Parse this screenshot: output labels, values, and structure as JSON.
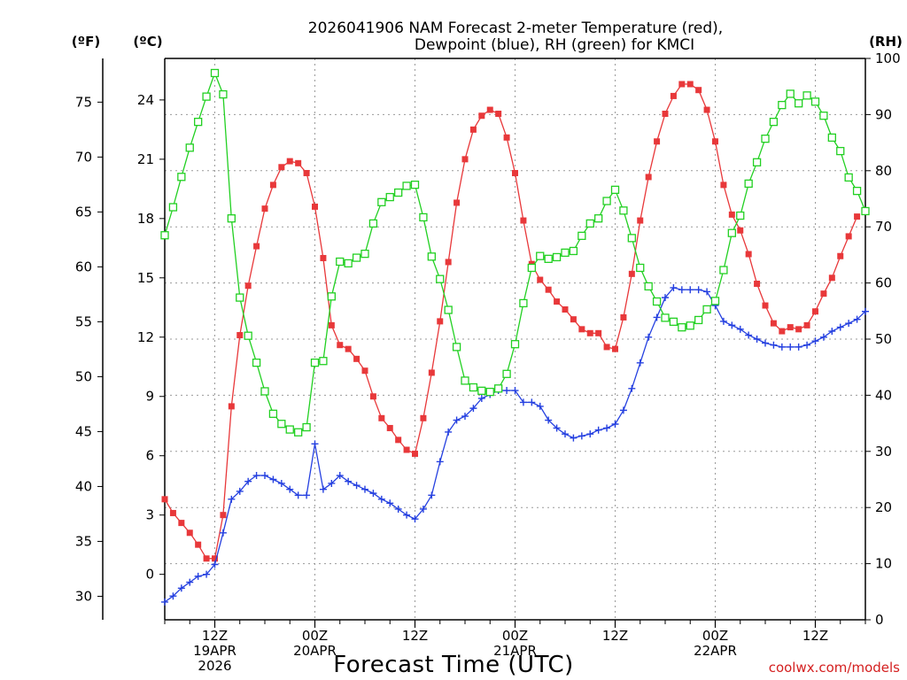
{
  "title": [
    "2026041906 NAM Forecast 2-meter Temperature (red),",
    "Dewpoint (blue), RH (green) for KMCI"
  ],
  "credit": "coolwx.com/models",
  "chart_data": {
    "type": "line",
    "xlabel": "Forecast Time (UTC)",
    "x_unit": "hours from 2026-04-19 06Z",
    "xlim": [
      0,
      84
    ],
    "x_ticks": [
      {
        "x": 6,
        "lines": [
          "12Z",
          "19APR",
          "2026"
        ]
      },
      {
        "x": 18,
        "lines": [
          "00Z",
          "20APR"
        ]
      },
      {
        "x": 30,
        "lines": [
          "12Z"
        ]
      },
      {
        "x": 42,
        "lines": [
          "00Z",
          "21APR"
        ]
      },
      {
        "x": 54,
        "lines": [
          "12Z"
        ]
      },
      {
        "x": 66,
        "lines": [
          "00Z",
          "22APR"
        ]
      },
      {
        "x": 78,
        "lines": [
          "12Z"
        ]
      }
    ],
    "axes": {
      "fahrenheit": {
        "label": "(ºF)",
        "ticks": [
          30,
          35,
          40,
          45,
          50,
          55,
          60,
          65,
          70,
          75
        ]
      },
      "celsius": {
        "label": "(ºC)",
        "ylim": [
          -2.3,
          26.1
        ],
        "ticks": [
          0,
          3,
          6,
          9,
          12,
          15,
          18,
          21,
          24
        ]
      },
      "rh": {
        "label": "(RH)",
        "ylim": [
          0,
          100
        ],
        "ticks": [
          0,
          10,
          20,
          30,
          40,
          50,
          60,
          70,
          80,
          90,
          100
        ]
      }
    },
    "grid": true,
    "series": [
      {
        "name": "Temperature",
        "axis": "celsius",
        "color": "#e8383a",
        "marker": "filled-square",
        "points": [
          [
            0,
            3.8
          ],
          [
            1,
            3.1
          ],
          [
            2,
            2.6
          ],
          [
            3,
            2.1
          ],
          [
            4,
            1.5
          ],
          [
            5,
            0.8
          ],
          [
            6,
            0.8
          ],
          [
            7,
            3.0
          ],
          [
            8,
            8.5
          ],
          [
            9,
            12.1
          ],
          [
            10,
            14.6
          ],
          [
            11,
            16.6
          ],
          [
            12,
            18.5
          ],
          [
            13,
            19.7
          ],
          [
            14,
            20.6
          ],
          [
            15,
            20.9
          ],
          [
            16,
            20.8
          ],
          [
            17,
            20.3
          ],
          [
            18,
            18.6
          ],
          [
            19,
            16.0
          ],
          [
            20,
            12.6
          ],
          [
            21,
            11.6
          ],
          [
            22,
            11.4
          ],
          [
            23,
            10.9
          ],
          [
            24,
            10.3
          ],
          [
            25,
            9.0
          ],
          [
            26,
            7.9
          ],
          [
            27,
            7.4
          ],
          [
            28,
            6.8
          ],
          [
            29,
            6.3
          ],
          [
            30,
            6.1
          ],
          [
            31,
            7.9
          ],
          [
            32,
            10.2
          ],
          [
            33,
            12.8
          ],
          [
            34,
            15.8
          ],
          [
            35,
            18.8
          ],
          [
            36,
            21.0
          ],
          [
            37,
            22.5
          ],
          [
            38,
            23.2
          ],
          [
            39,
            23.5
          ],
          [
            40,
            23.3
          ],
          [
            41,
            22.1
          ],
          [
            42,
            20.3
          ],
          [
            43,
            17.9
          ],
          [
            44,
            15.7
          ],
          [
            45,
            14.9
          ],
          [
            46,
            14.4
          ],
          [
            47,
            13.8
          ],
          [
            48,
            13.4
          ],
          [
            49,
            12.9
          ],
          [
            50,
            12.4
          ],
          [
            51,
            12.2
          ],
          [
            52,
            12.2
          ],
          [
            53,
            11.5
          ],
          [
            54,
            11.4
          ],
          [
            55,
            13.0
          ],
          [
            56,
            15.2
          ],
          [
            57,
            17.9
          ],
          [
            58,
            20.1
          ],
          [
            59,
            21.9
          ],
          [
            60,
            23.3
          ],
          [
            61,
            24.2
          ],
          [
            62,
            24.8
          ],
          [
            63,
            24.8
          ],
          [
            64,
            24.5
          ],
          [
            65,
            23.5
          ],
          [
            66,
            21.9
          ],
          [
            67,
            19.7
          ],
          [
            68,
            18.2
          ],
          [
            69,
            17.4
          ],
          [
            70,
            16.2
          ],
          [
            71,
            14.7
          ],
          [
            72,
            13.6
          ],
          [
            73,
            12.7
          ],
          [
            74,
            12.3
          ],
          [
            75,
            12.5
          ],
          [
            76,
            12.4
          ],
          [
            77,
            12.6
          ],
          [
            78,
            13.3
          ],
          [
            79,
            14.2
          ],
          [
            80,
            15.0
          ],
          [
            81,
            16.1
          ],
          [
            82,
            17.1
          ],
          [
            83,
            18.1
          ]
        ]
      },
      {
        "name": "Dewpoint",
        "axis": "celsius",
        "color": "#2540e0",
        "marker": "plus",
        "points": [
          [
            0,
            -1.4
          ],
          [
            1,
            -1.1
          ],
          [
            2,
            -0.7
          ],
          [
            3,
            -0.4
          ],
          [
            4,
            -0.1
          ],
          [
            5,
            0.0
          ],
          [
            6,
            0.5
          ],
          [
            7,
            2.1
          ],
          [
            8,
            3.8
          ],
          [
            9,
            4.2
          ],
          [
            10,
            4.7
          ],
          [
            11,
            5.0
          ],
          [
            12,
            5.0
          ],
          [
            13,
            4.8
          ],
          [
            14,
            4.6
          ],
          [
            15,
            4.3
          ],
          [
            16,
            4.0
          ],
          [
            17,
            4.0
          ],
          [
            18,
            6.6
          ],
          [
            19,
            4.3
          ],
          [
            20,
            4.6
          ],
          [
            21,
            5.0
          ],
          [
            22,
            4.7
          ],
          [
            23,
            4.5
          ],
          [
            24,
            4.3
          ],
          [
            25,
            4.1
          ],
          [
            26,
            3.8
          ],
          [
            27,
            3.6
          ],
          [
            28,
            3.3
          ],
          [
            29,
            3.0
          ],
          [
            30,
            2.8
          ],
          [
            31,
            3.3
          ],
          [
            32,
            4.0
          ],
          [
            33,
            5.7
          ],
          [
            34,
            7.2
          ],
          [
            35,
            7.8
          ],
          [
            36,
            8.0
          ],
          [
            37,
            8.4
          ],
          [
            38,
            8.9
          ],
          [
            39,
            9.1
          ],
          [
            40,
            9.3
          ],
          [
            41,
            9.3
          ],
          [
            42,
            9.3
          ],
          [
            43,
            8.7
          ],
          [
            44,
            8.7
          ],
          [
            45,
            8.5
          ],
          [
            46,
            7.8
          ],
          [
            47,
            7.4
          ],
          [
            48,
            7.1
          ],
          [
            49,
            6.9
          ],
          [
            50,
            7.0
          ],
          [
            51,
            7.1
          ],
          [
            52,
            7.3
          ],
          [
            53,
            7.4
          ],
          [
            54,
            7.6
          ],
          [
            55,
            8.3
          ],
          [
            56,
            9.4
          ],
          [
            57,
            10.7
          ],
          [
            58,
            12.0
          ],
          [
            59,
            13.0
          ],
          [
            60,
            14.0
          ],
          [
            61,
            14.5
          ],
          [
            62,
            14.4
          ],
          [
            63,
            14.4
          ],
          [
            64,
            14.4
          ],
          [
            65,
            14.3
          ],
          [
            66,
            13.6
          ],
          [
            67,
            12.8
          ],
          [
            68,
            12.6
          ],
          [
            69,
            12.4
          ],
          [
            70,
            12.1
          ],
          [
            71,
            11.9
          ],
          [
            72,
            11.7
          ],
          [
            73,
            11.6
          ],
          [
            74,
            11.5
          ],
          [
            75,
            11.5
          ],
          [
            76,
            11.5
          ],
          [
            77,
            11.6
          ],
          [
            78,
            11.8
          ],
          [
            79,
            12.0
          ],
          [
            80,
            12.3
          ],
          [
            81,
            12.5
          ],
          [
            82,
            12.7
          ],
          [
            83,
            12.9
          ],
          [
            84,
            13.3
          ]
        ]
      },
      {
        "name": "RH",
        "axis": "rh",
        "color": "#22d022",
        "marker": "open-square",
        "points": [
          [
            0,
            68.5
          ],
          [
            1,
            73.5
          ],
          [
            2,
            78.9
          ],
          [
            3,
            84.1
          ],
          [
            4,
            88.7
          ],
          [
            5,
            93.2
          ],
          [
            6,
            97.4
          ],
          [
            7,
            93.6
          ],
          [
            8,
            71.5
          ],
          [
            9,
            57.4
          ],
          [
            10,
            50.6
          ],
          [
            11,
            45.8
          ],
          [
            12,
            40.7
          ],
          [
            13,
            36.7
          ],
          [
            14,
            34.9
          ],
          [
            15,
            33.9
          ],
          [
            16,
            33.4
          ],
          [
            17,
            34.3
          ],
          [
            18,
            45.8
          ],
          [
            19,
            46.1
          ],
          [
            20,
            57.6
          ],
          [
            21,
            63.8
          ],
          [
            22,
            63.5
          ],
          [
            23,
            64.5
          ],
          [
            24,
            65.2
          ],
          [
            25,
            70.6
          ],
          [
            26,
            74.4
          ],
          [
            27,
            75.3
          ],
          [
            28,
            76.1
          ],
          [
            29,
            77.3
          ],
          [
            30,
            77.5
          ],
          [
            31,
            71.7
          ],
          [
            32,
            64.7
          ],
          [
            33,
            60.7
          ],
          [
            34,
            55.2
          ],
          [
            35,
            48.6
          ],
          [
            36,
            42.6
          ],
          [
            37,
            41.4
          ],
          [
            38,
            40.8
          ],
          [
            39,
            40.6
          ],
          [
            40,
            41.2
          ],
          [
            41,
            43.8
          ],
          [
            42,
            49.1
          ],
          [
            43,
            56.4
          ],
          [
            44,
            62.7
          ],
          [
            45,
            64.8
          ],
          [
            46,
            64.3
          ],
          [
            47,
            64.6
          ],
          [
            48,
            65.4
          ],
          [
            49,
            65.7
          ],
          [
            50,
            68.4
          ],
          [
            51,
            70.6
          ],
          [
            52,
            71.5
          ],
          [
            53,
            74.6
          ],
          [
            54,
            76.6
          ],
          [
            55,
            72.9
          ],
          [
            56,
            68.0
          ],
          [
            57,
            62.7
          ],
          [
            58,
            59.4
          ],
          [
            59,
            56.7
          ],
          [
            60,
            53.8
          ],
          [
            61,
            53.1
          ],
          [
            62,
            52.1
          ],
          [
            63,
            52.4
          ],
          [
            64,
            53.4
          ],
          [
            65,
            55.3
          ],
          [
            66,
            56.8
          ],
          [
            67,
            62.3
          ],
          [
            68,
            68.9
          ],
          [
            69,
            72.0
          ],
          [
            70,
            77.7
          ],
          [
            71,
            81.5
          ],
          [
            72,
            85.7
          ],
          [
            73,
            88.7
          ],
          [
            74,
            91.7
          ],
          [
            75,
            93.7
          ],
          [
            76,
            92.0
          ],
          [
            77,
            93.4
          ],
          [
            78,
            92.3
          ],
          [
            79,
            89.8
          ],
          [
            80,
            85.9
          ],
          [
            81,
            83.5
          ],
          [
            82,
            78.8
          ],
          [
            83,
            76.4
          ],
          [
            84,
            72.8
          ]
        ]
      }
    ]
  }
}
